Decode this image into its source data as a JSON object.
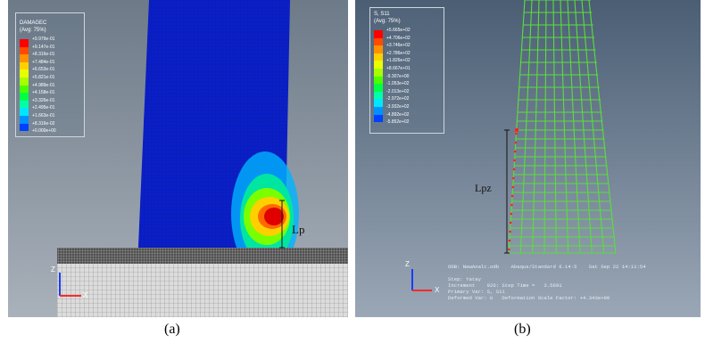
{
  "panel_a": {
    "legend": {
      "title_lines": [
        "DAMAGEC",
        "(Avg: 75%)"
      ],
      "values": [
        "+9.979e-01",
        "+9.147e-01",
        "+8.316e-01",
        "+7.484e-01",
        "+6.653e-01",
        "+5.821e-01",
        "+4.989e-01",
        "+4.158e-01",
        "+3.326e-01",
        "+2.495e-01",
        "+1.663e-01",
        "+8.316e-02",
        "+0.000e+00"
      ],
      "colors": [
        "#ff0000",
        "#ff4a00",
        "#ff9000",
        "#ffd000",
        "#e8ff00",
        "#a6ff00",
        "#4cff00",
        "#00ff44",
        "#00ffa8",
        "#00e6ff",
        "#0092ff",
        "#0040ff",
        "#0000ff"
      ]
    },
    "lp_label": "Lp",
    "axis": {
      "z": "Z",
      "x": "X"
    },
    "caption": "(a)"
  },
  "panel_b": {
    "legend": {
      "title_lines": [
        "S, S11",
        "(Avg: 75%)"
      ],
      "values": [
        "+5.665e+02",
        "+4.706e+02",
        "+3.746e+02",
        "+2.786e+02",
        "+1.826e+02",
        "+8.667e+01",
        "-9.307e+00",
        "-1.053e+02",
        "-2.013e+02",
        "-2.972e+02",
        "-3.932e+02",
        "-4.892e+02",
        "-5.852e+02"
      ],
      "colors": [
        "#ff0000",
        "#ff4a00",
        "#ff9000",
        "#ffd000",
        "#e8ff00",
        "#a6ff00",
        "#4cff00",
        "#00ff44",
        "#00ffa8",
        "#00e6ff",
        "#0092ff",
        "#0040ff",
        "#0000ff"
      ]
    },
    "lpz_label": "Lpz",
    "info_lines": [
      "ODB: NewAnalc.odb    Abaqus/Standard 6.14-5    Sat Sep 22 14:11:54",
      "",
      "Step: Yatay",
      "Increment    926: Step Time =   3.5691",
      "Primary Var: S, S11",
      "Deformed Var: U   Deformation Scale Factor: +4.343e+00"
    ],
    "axis": {
      "z": "Z",
      "x": "X"
    },
    "caption": "(b)"
  },
  "colors": {
    "mesh_green": "#59e03a",
    "column_blue": "#0a1fc8",
    "red_nodes": "#ff2020"
  }
}
